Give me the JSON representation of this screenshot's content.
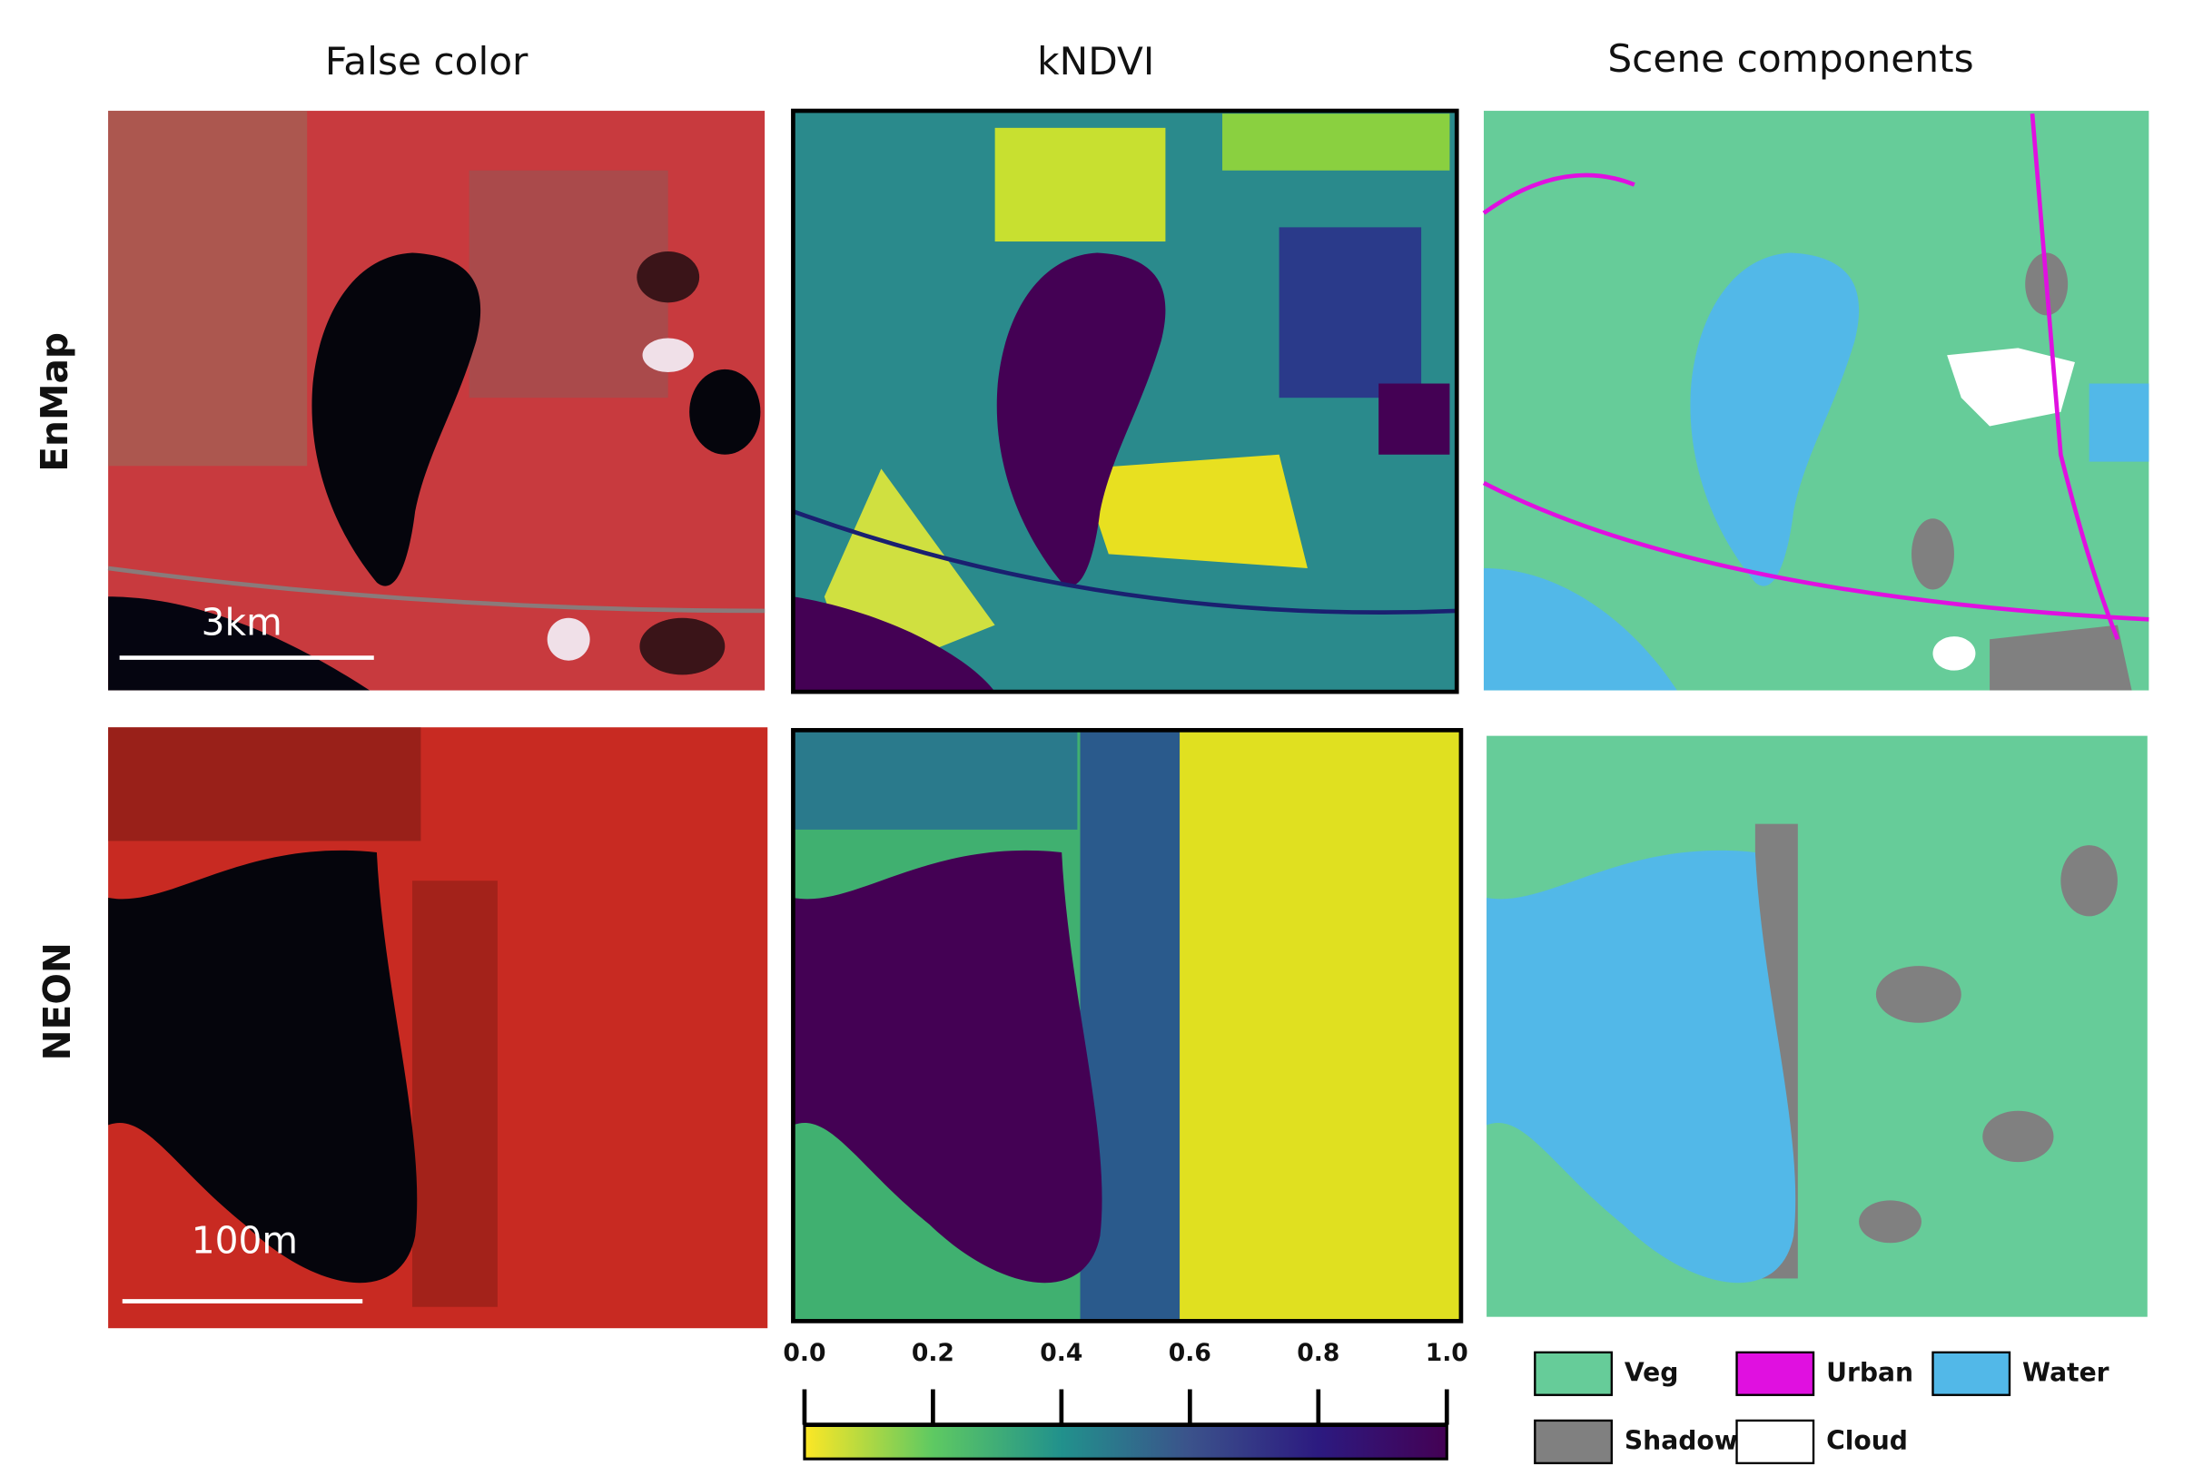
{
  "columns": [
    "False color",
    "kNDVI",
    "Scene components"
  ],
  "rows": [
    "EnMap",
    "NEON"
  ],
  "scale_bars": [
    "3km",
    "100m"
  ],
  "colorbar": {
    "range": [
      0,
      1
    ],
    "ticks": [
      {
        "value": 0,
        "label": "0.0"
      },
      {
        "value": 0.2,
        "label": "0.2"
      },
      {
        "value": 0.4,
        "label": "0.4"
      },
      {
        "value": 0.6,
        "label": "0.6"
      },
      {
        "value": 0.8,
        "label": "0.8"
      },
      {
        "value": 1,
        "label": "1.0"
      }
    ],
    "colors": [
      "#fde725",
      "#5ec962",
      "#21918c",
      "#3b528b",
      "#2c1a80",
      "#440154"
    ]
  },
  "legend": [
    {
      "label": "Veg",
      "color": "#66cc99"
    },
    {
      "label": "Urban",
      "color": "#e010e0"
    },
    {
      "label": "Water",
      "color": "#52b8e8"
    },
    {
      "label": "Shadow",
      "color": "#808080"
    },
    {
      "label": "Cloud",
      "color": "#ffffff"
    }
  ]
}
